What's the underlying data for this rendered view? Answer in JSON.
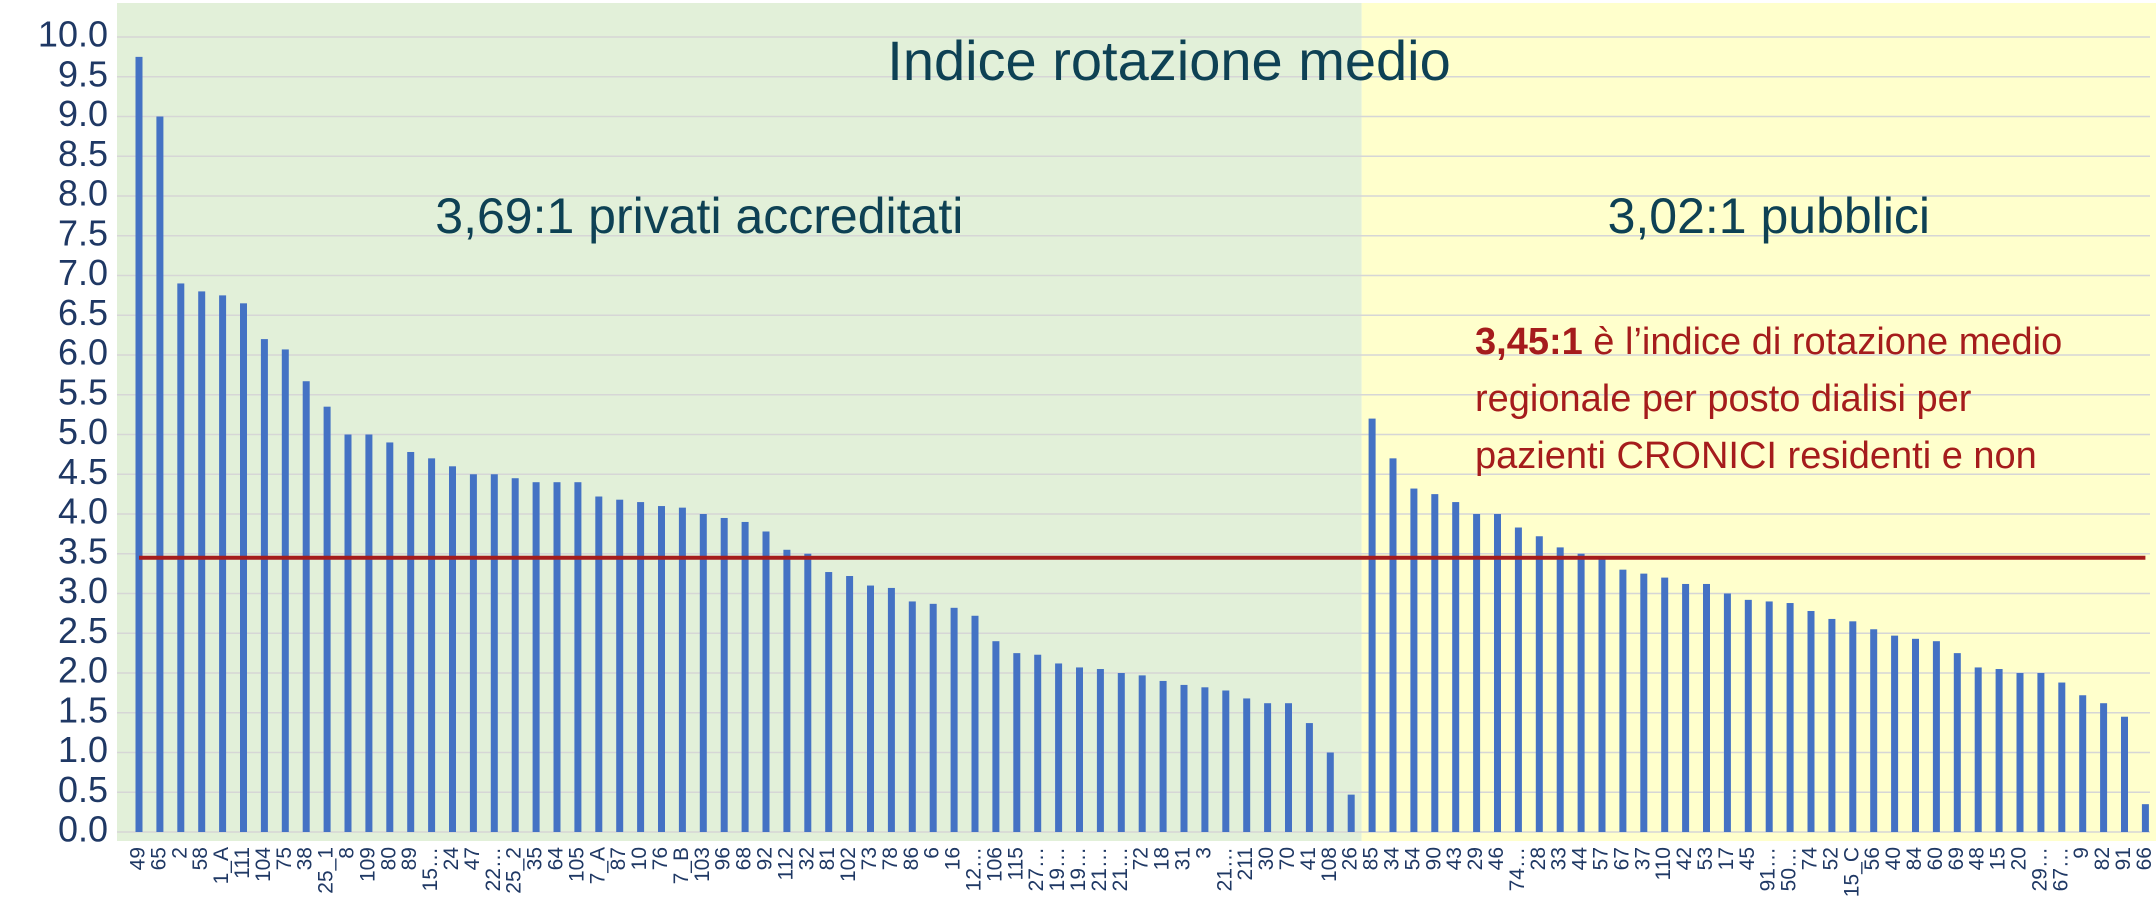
{
  "chart_data": {
    "type": "bar",
    "title": "Indice rotazione medio",
    "categories": [
      "49",
      "65",
      "2",
      "58",
      "1_A",
      "111",
      "104",
      "75",
      "38",
      "25_1",
      "8",
      "109",
      "80",
      "89",
      "15…",
      "24",
      "47",
      "22…",
      "25_2",
      "35",
      "64",
      "105",
      "7_A",
      "87",
      "10",
      "76",
      "7_B",
      "103",
      "96",
      "68",
      "92",
      "112",
      "32",
      "81",
      "102",
      "73",
      "78",
      "86",
      "6",
      "16",
      "12…",
      "106",
      "115",
      "27…",
      "19…",
      "19…",
      "21…",
      "21…",
      "72",
      "18",
      "31",
      "3",
      "21…",
      "211",
      "30",
      "70",
      "41",
      "108",
      "26",
      "85",
      "34",
      "54",
      "90",
      "43",
      "29",
      "46",
      "74…",
      "28",
      "33",
      "44",
      "57",
      "67",
      "37",
      "110",
      "42",
      "53",
      "17",
      "45",
      "91…",
      "50…",
      "74",
      "52",
      "15_C",
      "56",
      "40",
      "84",
      "60",
      "69",
      "48",
      "15",
      "20",
      "29…",
      "67…",
      "9",
      "82",
      "91",
      "66"
    ],
    "values": [
      9.75,
      9.0,
      6.9,
      6.8,
      6.75,
      6.65,
      6.2,
      6.07,
      5.67,
      5.35,
      5.0,
      5.0,
      4.9,
      4.78,
      4.7,
      4.6,
      4.5,
      4.5,
      4.45,
      4.4,
      4.4,
      4.4,
      4.22,
      4.18,
      4.15,
      4.1,
      4.08,
      4.0,
      3.95,
      3.9,
      3.78,
      3.55,
      3.5,
      3.27,
      3.22,
      3.1,
      3.07,
      2.9,
      2.87,
      2.82,
      2.72,
      2.4,
      2.25,
      2.23,
      2.12,
      2.07,
      2.05,
      2.0,
      1.97,
      1.9,
      1.85,
      1.82,
      1.78,
      1.68,
      1.62,
      1.62,
      1.37,
      1.0,
      0.47,
      5.2,
      4.7,
      4.32,
      4.25,
      4.15,
      4.0,
      4.0,
      3.83,
      3.72,
      3.58,
      3.5,
      3.45,
      3.3,
      3.25,
      3.2,
      3.12,
      3.12,
      3.0,
      2.92,
      2.9,
      2.88,
      2.78,
      2.68,
      2.65,
      2.55,
      2.47,
      2.43,
      2.4,
      2.25,
      2.07,
      2.05,
      2.0,
      2.0,
      1.88,
      1.72,
      1.62,
      1.45,
      0.35
    ],
    "color": "#4472c4",
    "ylim": [
      0,
      10
    ],
    "yticks": [
      {
        "value": 0,
        "label": "0.0"
      },
      {
        "value": 0.5,
        "label": "0.5"
      },
      {
        "value": 1,
        "label": "1.0"
      },
      {
        "value": 1.5,
        "label": "1.5"
      },
      {
        "value": 2,
        "label": "2.0"
      },
      {
        "value": 2.5,
        "label": "2.5"
      },
      {
        "value": 3,
        "label": "3.0"
      },
      {
        "value": 3.5,
        "label": "3.5"
      },
      {
        "value": 4,
        "label": "4.0"
      },
      {
        "value": 4.5,
        "label": "4.5"
      },
      {
        "value": 5,
        "label": "5.0"
      },
      {
        "value": 5.5,
        "label": "5.5"
      },
      {
        "value": 6,
        "label": "6.0"
      },
      {
        "value": 6.5,
        "label": "6.5"
      },
      {
        "value": 7,
        "label": "7.0"
      },
      {
        "value": 7.5,
        "label": "7.5"
      },
      {
        "value": 8,
        "label": "8.0"
      },
      {
        "value": 8.5,
        "label": "8.5"
      },
      {
        "value": 9,
        "label": "9.0"
      },
      {
        "value": 9.5,
        "label": "9.5"
      },
      {
        "value": 10,
        "label": "10.0"
      }
    ],
    "grid": true,
    "regions": [
      {
        "label": "3,69:1 privati accreditati",
        "start": "49",
        "end": "26",
        "color": "#e2f0d9"
      },
      {
        "label": "3,02:1 pubblici",
        "start": "85",
        "end": "66",
        "color": "#ffffcc"
      }
    ],
    "reference_line": {
      "value": 3.45,
      "color": "#a51c1c"
    },
    "annotation": {
      "bold": "3,45:1",
      "lines": [
        " è l’indice di rotazione medio",
        "regionale per posto dialisi per",
        "pazienti CRONICI residenti e non"
      ],
      "color": "#a51c1c"
    }
  }
}
